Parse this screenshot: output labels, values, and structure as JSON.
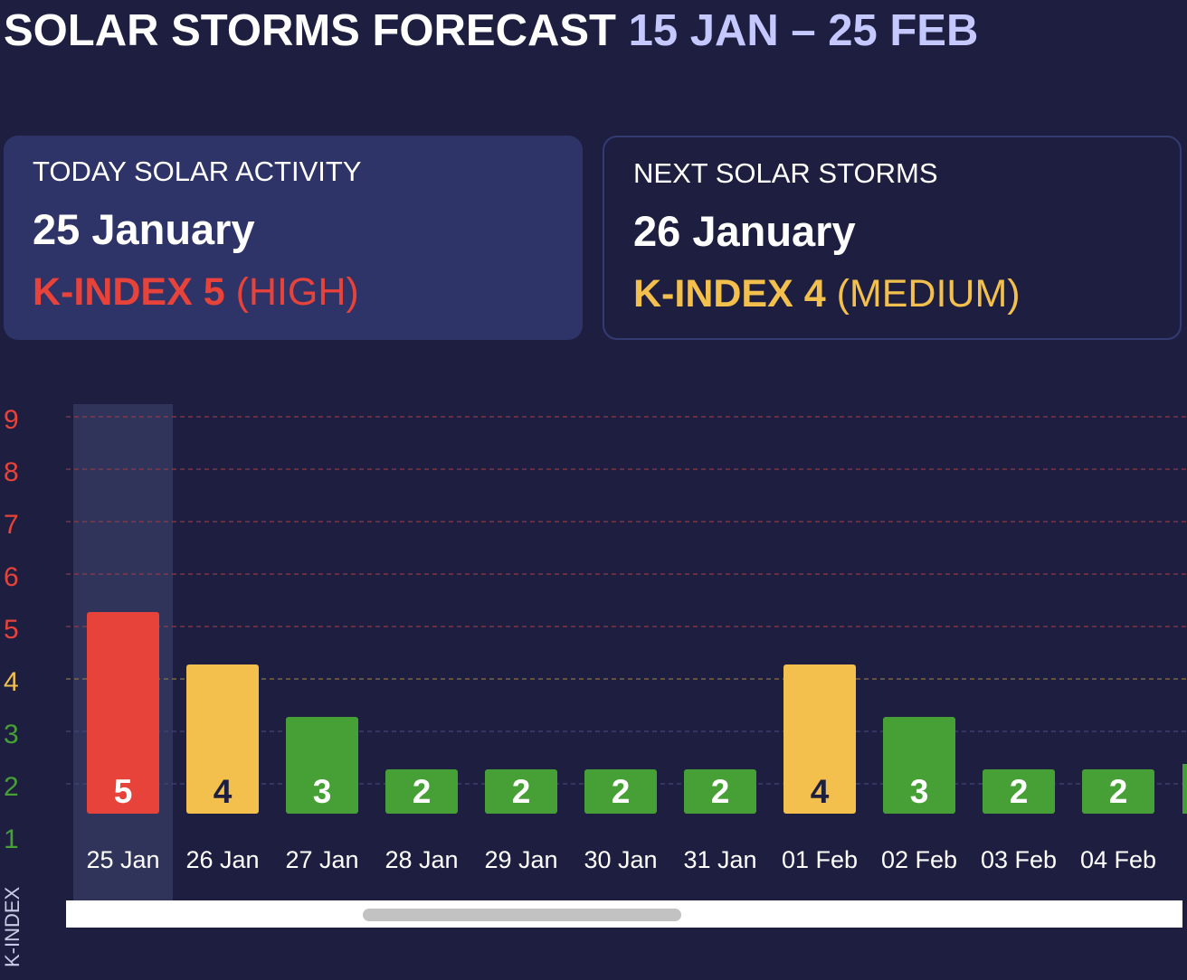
{
  "header": {
    "title": "SOLAR STORMS FORECAST",
    "range": "15 JAN – 25 FEB"
  },
  "today_card": {
    "title": "TODAY SOLAR ACTIVITY",
    "date": "25 January",
    "kindex": "K-INDEX 5",
    "level": "(HIGH)",
    "color": "#e8433a"
  },
  "next_card": {
    "title": "NEXT SOLAR STORMS",
    "date": "26 January",
    "kindex": "K-INDEX 4",
    "level": "(MEDIUM)",
    "color": "#f3c04e"
  },
  "chart_data": {
    "type": "bar",
    "ylabel": "K-INDEX",
    "yticks": [
      1,
      2,
      3,
      4,
      5,
      6,
      7,
      8,
      9
    ],
    "categories": [
      "25 Jan",
      "26 Jan",
      "27 Jan",
      "28 Jan",
      "29 Jan",
      "30 Jan",
      "31 Jan",
      "01 Feb",
      "02 Feb",
      "03 Feb",
      "04 Feb"
    ],
    "values": [
      5,
      4,
      3,
      2,
      2,
      2,
      2,
      4,
      3,
      2,
      2
    ],
    "highlighted_category": "25 Jan",
    "grid": true,
    "colors": {
      "low": "#47a035",
      "medium": "#f3c04e",
      "high": "#e8433a",
      "highlight": "#31345a"
    }
  },
  "scrollbar": {
    "visible": true
  }
}
